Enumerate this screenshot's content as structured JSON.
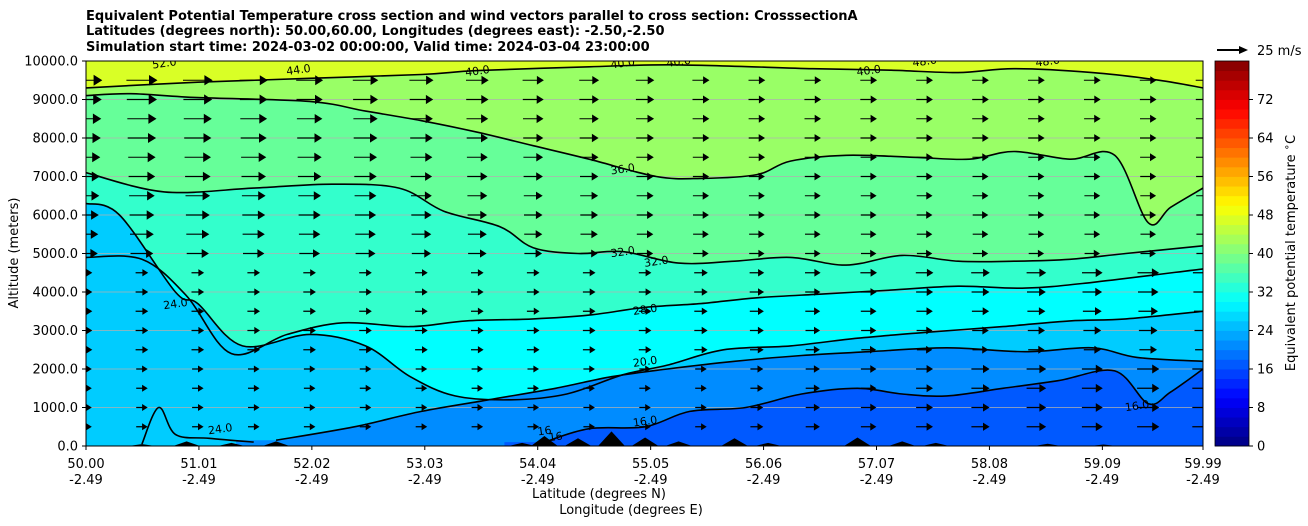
{
  "chart_data": {
    "type": "contour",
    "title_lines": [
      "Equivalent Potential Temperature cross section and wind vectors parallel to cross section: CrosssectionA",
      "Latitudes (degrees north): 50.00,60.00, Longitudes (degrees east): -2.50,-2.50",
      "Simulation start time: 2024-03-02 00:00:00, Valid time: 2024-03-04 23:00:00"
    ],
    "xlabel_lines": [
      "Latitude (degrees N)",
      "Longitude (degrees E)"
    ],
    "ylabel": "Altitude (meters)",
    "x_ticks": [
      {
        "lat": "50.00",
        "lon": "-2.49"
      },
      {
        "lat": "51.01",
        "lon": "-2.49"
      },
      {
        "lat": "52.02",
        "lon": "-2.49"
      },
      {
        "lat": "53.03",
        "lon": "-2.49"
      },
      {
        "lat": "54.04",
        "lon": "-2.49"
      },
      {
        "lat": "55.05",
        "lon": "-2.49"
      },
      {
        "lat": "56.06",
        "lon": "-2.49"
      },
      {
        "lat": "57.07",
        "lon": "-2.49"
      },
      {
        "lat": "58.08",
        "lon": "-2.49"
      },
      {
        "lat": "59.09",
        "lon": "-2.49"
      },
      {
        "lat": "59.99",
        "lon": "-2.49"
      }
    ],
    "y_ticks": [
      "0.0",
      "1000.0",
      "2000.0",
      "3000.0",
      "4000.0",
      "5000.0",
      "6000.0",
      "7000.0",
      "8000.0",
      "9000.0",
      "10000.0"
    ],
    "xlim": [
      50.0,
      59.99
    ],
    "ylim": [
      0,
      10000
    ],
    "grid": "horizontal",
    "colorbar": {
      "label": "Equivalent potential temperature $^\\circ$C",
      "ticks": [
        "0",
        "8",
        "16",
        "24",
        "32",
        "40",
        "48",
        "56",
        "64",
        "72"
      ],
      "range": [
        0,
        80
      ],
      "levels_step": 2,
      "colormap": "jet"
    },
    "quiver_key": {
      "label": "25 m/s",
      "position": "top-right"
    },
    "contour_labels": [
      {
        "text": "52.0",
        "lat": 50.7,
        "alt": 9950
      },
      {
        "text": "44.0",
        "lat": 51.9,
        "alt": 9780
      },
      {
        "text": "40.0",
        "lat": 53.5,
        "alt": 9750
      },
      {
        "text": "40.0",
        "lat": 54.8,
        "alt": 9950
      },
      {
        "text": "40.0",
        "lat": 55.3,
        "alt": 9990
      },
      {
        "text": "40.0",
        "lat": 57.0,
        "alt": 9760
      },
      {
        "text": "48.0",
        "lat": 57.5,
        "alt": 10000
      },
      {
        "text": "48.0",
        "lat": 58.6,
        "alt": 10000
      },
      {
        "text": "36.0",
        "lat": 54.8,
        "alt": 7200
      },
      {
        "text": "32.0",
        "lat": 54.8,
        "alt": 5050
      },
      {
        "text": "32.0",
        "lat": 55.1,
        "alt": 4800
      },
      {
        "text": "28.0",
        "lat": 55.0,
        "alt": 3550
      },
      {
        "text": "20.0",
        "lat": 55.0,
        "alt": 2200
      },
      {
        "text": "24.0",
        "lat": 50.8,
        "alt": 3700
      },
      {
        "text": "24.0",
        "lat": 51.2,
        "alt": 450
      },
      {
        "text": "16.0",
        "lat": 55.0,
        "alt": 650
      },
      {
        "text": "16",
        "lat": 54.2,
        "alt": 250
      },
      {
        "text": "16",
        "lat": 54.1,
        "alt": 400
      },
      {
        "text": "16.0",
        "lat": 59.4,
        "alt": 1050
      }
    ],
    "contours": [
      {
        "level": 40,
        "points": [
          [
            50.0,
            9300
          ],
          [
            51.0,
            9450
          ],
          [
            52.0,
            9550
          ],
          [
            53.0,
            9650
          ],
          [
            53.5,
            9750
          ],
          [
            54.5,
            9850
          ],
          [
            55.3,
            9900
          ],
          [
            56.5,
            9800
          ],
          [
            57.2,
            9760
          ],
          [
            57.8,
            9700
          ],
          [
            58.3,
            9800
          ],
          [
            59.0,
            9700
          ],
          [
            59.6,
            9500
          ],
          [
            59.99,
            9300
          ]
        ]
      },
      {
        "level": 36,
        "points": [
          [
            50.0,
            9100
          ],
          [
            50.4,
            9150
          ],
          [
            51.0,
            9050
          ],
          [
            52.0,
            8950
          ],
          [
            52.5,
            8700
          ],
          [
            53.0,
            8450
          ],
          [
            53.5,
            8150
          ],
          [
            54.0,
            7800
          ],
          [
            54.5,
            7450
          ],
          [
            55.1,
            7000
          ],
          [
            55.5,
            6950
          ],
          [
            56.0,
            7050
          ],
          [
            56.3,
            7400
          ],
          [
            56.8,
            7550
          ],
          [
            57.4,
            7500
          ],
          [
            57.9,
            7450
          ],
          [
            58.3,
            7650
          ],
          [
            58.8,
            7450
          ],
          [
            59.2,
            7550
          ],
          [
            59.5,
            5800
          ],
          [
            59.7,
            6200
          ],
          [
            59.99,
            6700
          ]
        ]
      },
      {
        "level": 32,
        "points": [
          [
            50.0,
            7100
          ],
          [
            50.7,
            6600
          ],
          [
            51.5,
            6700
          ],
          [
            52.2,
            6800
          ],
          [
            52.8,
            6700
          ],
          [
            53.2,
            6100
          ],
          [
            53.7,
            5700
          ],
          [
            54.0,
            5150
          ],
          [
            54.4,
            5000
          ],
          [
            54.8,
            5050
          ],
          [
            55.3,
            4750
          ],
          [
            55.8,
            4800
          ],
          [
            56.3,
            4900
          ],
          [
            56.8,
            4700
          ],
          [
            57.3,
            4950
          ],
          [
            57.8,
            4800
          ],
          [
            58.3,
            4800
          ],
          [
            58.8,
            4850
          ],
          [
            59.3,
            5000
          ],
          [
            59.99,
            5200
          ]
        ]
      },
      {
        "level": 28,
        "points": [
          [
            50.0,
            4900
          ],
          [
            50.5,
            4850
          ],
          [
            50.9,
            3900
          ],
          [
            51.3,
            2400
          ],
          [
            51.8,
            2900
          ],
          [
            52.3,
            3200
          ],
          [
            52.9,
            3100
          ],
          [
            53.4,
            3250
          ],
          [
            54.0,
            3300
          ],
          [
            54.5,
            3400
          ],
          [
            55.0,
            3600
          ],
          [
            55.5,
            3700
          ],
          [
            56.0,
            3850
          ],
          [
            56.6,
            3950
          ],
          [
            57.2,
            4050
          ],
          [
            57.8,
            4150
          ],
          [
            58.4,
            4100
          ],
          [
            59.0,
            4250
          ],
          [
            59.99,
            4600
          ]
        ]
      },
      {
        "level": 24,
        "points": [
          [
            50.0,
            6300
          ],
          [
            50.3,
            6000
          ],
          [
            50.8,
            4000
          ],
          [
            51.0,
            3700
          ],
          [
            51.4,
            2600
          ],
          [
            52.0,
            2900
          ],
          [
            52.5,
            2600
          ],
          [
            52.9,
            1800
          ],
          [
            53.3,
            1300
          ],
          [
            53.8,
            1200
          ],
          [
            54.3,
            1350
          ],
          [
            54.8,
            1850
          ],
          [
            55.2,
            2100
          ],
          [
            55.7,
            2500
          ],
          [
            56.3,
            2600
          ],
          [
            56.9,
            2800
          ],
          [
            57.5,
            2950
          ],
          [
            58.2,
            3100
          ],
          [
            58.8,
            3250
          ],
          [
            59.3,
            3300
          ],
          [
            59.99,
            3500
          ]
        ]
      },
      {
        "level": 20,
        "points": [
          [
            51.7,
            150
          ],
          [
            52.4,
            500
          ],
          [
            53.0,
            900
          ],
          [
            53.6,
            1200
          ],
          [
            54.2,
            1500
          ],
          [
            54.7,
            1800
          ],
          [
            55.2,
            2000
          ],
          [
            55.8,
            2200
          ],
          [
            56.4,
            2350
          ],
          [
            57.0,
            2450
          ],
          [
            57.7,
            2550
          ],
          [
            58.4,
            2450
          ],
          [
            59.0,
            2550
          ],
          [
            59.4,
            2300
          ],
          [
            59.99,
            2200
          ]
        ]
      },
      {
        "level": 16,
        "points": [
          [
            54.1,
            100
          ],
          [
            54.5,
            450
          ],
          [
            55.0,
            500
          ],
          [
            55.4,
            900
          ],
          [
            55.9,
            1000
          ],
          [
            56.4,
            1350
          ],
          [
            56.9,
            1500
          ],
          [
            57.3,
            1350
          ],
          [
            57.7,
            1300
          ],
          [
            58.2,
            1500
          ],
          [
            58.7,
            1700
          ],
          [
            59.2,
            1950
          ],
          [
            59.5,
            1100
          ],
          [
            59.7,
            1400
          ],
          [
            59.99,
            2000
          ]
        ]
      },
      {
        "level": 24,
        "points": [
          [
            50.5,
            50
          ],
          [
            50.65,
            1000
          ],
          [
            50.8,
            300
          ],
          [
            51.1,
            200
          ],
          [
            51.5,
            100
          ]
        ]
      }
    ]
  }
}
